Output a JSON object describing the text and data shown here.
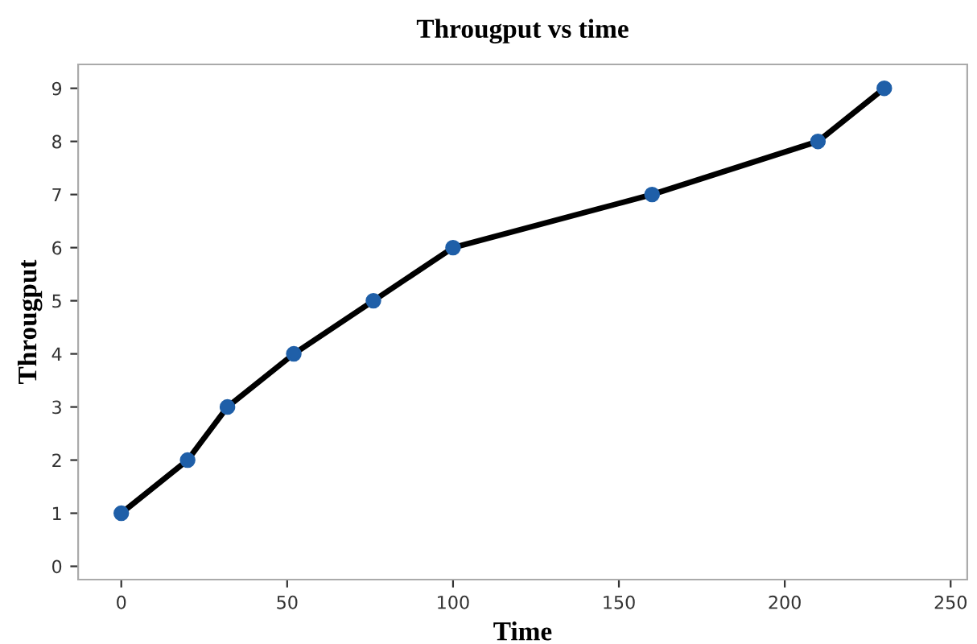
{
  "chart_data": {
    "type": "line",
    "title": "Througput vs time",
    "xlabel": "Time",
    "ylabel": "Througput",
    "x": [
      0,
      20,
      32,
      52,
      76,
      100,
      160,
      210,
      230
    ],
    "series": [
      {
        "color": "#1f5fa8",
        "values": [
          1,
          2,
          3,
          4,
          5,
          6,
          7,
          8,
          9
        ]
      }
    ],
    "xlim": [
      -13,
      255
    ],
    "ylim": [
      -0.25,
      9.45
    ],
    "xticks": [
      0,
      50,
      100,
      150,
      200,
      250
    ],
    "yticks": [
      0,
      1,
      2,
      3,
      4,
      5,
      6,
      7,
      8,
      9
    ],
    "grid": false,
    "legend": false,
    "marker": "circle",
    "line_style": "solid"
  }
}
